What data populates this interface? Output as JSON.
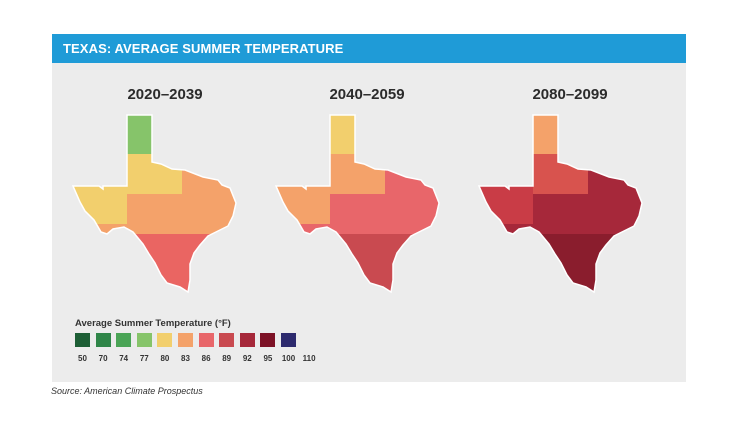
{
  "header": {
    "title": "TEXAS: AVERAGE SUMMER TEMPERATURE"
  },
  "maps": [
    {
      "period": "2020–2039",
      "base_color": "#f4a26a",
      "north_color": "#f2cf6d",
      "south_color": "#ea6562",
      "panhandle_color": "#86c46a",
      "west_color": "#f2cf6d"
    },
    {
      "period": "2040–2059",
      "base_color": "#e8666a",
      "north_color": "#f4a26a",
      "south_color": "#c94a50",
      "panhandle_color": "#f2cf6d",
      "west_color": "#f4a26a"
    },
    {
      "period": "2080–2099",
      "base_color": "#a6283a",
      "north_color": "#d8534e",
      "south_color": "#8a1d2d",
      "panhandle_color": "#f4a26a",
      "west_color": "#c93c46"
    }
  ],
  "legend": {
    "title": "Average Summer Temperature (°F)",
    "colors": [
      "#1d5e35",
      "#2f8548",
      "#4aa456",
      "#86c46a",
      "#f2cf6d",
      "#f4a26a",
      "#e8666a",
      "#c94a50",
      "#a6283a",
      "#7d1226",
      "#2d2a6e"
    ],
    "ticks": [
      "50",
      "70",
      "74",
      "77",
      "80",
      "83",
      "86",
      "89",
      "92",
      "95",
      "100",
      "110"
    ]
  },
  "source": "Source: American Climate Prospectus"
}
